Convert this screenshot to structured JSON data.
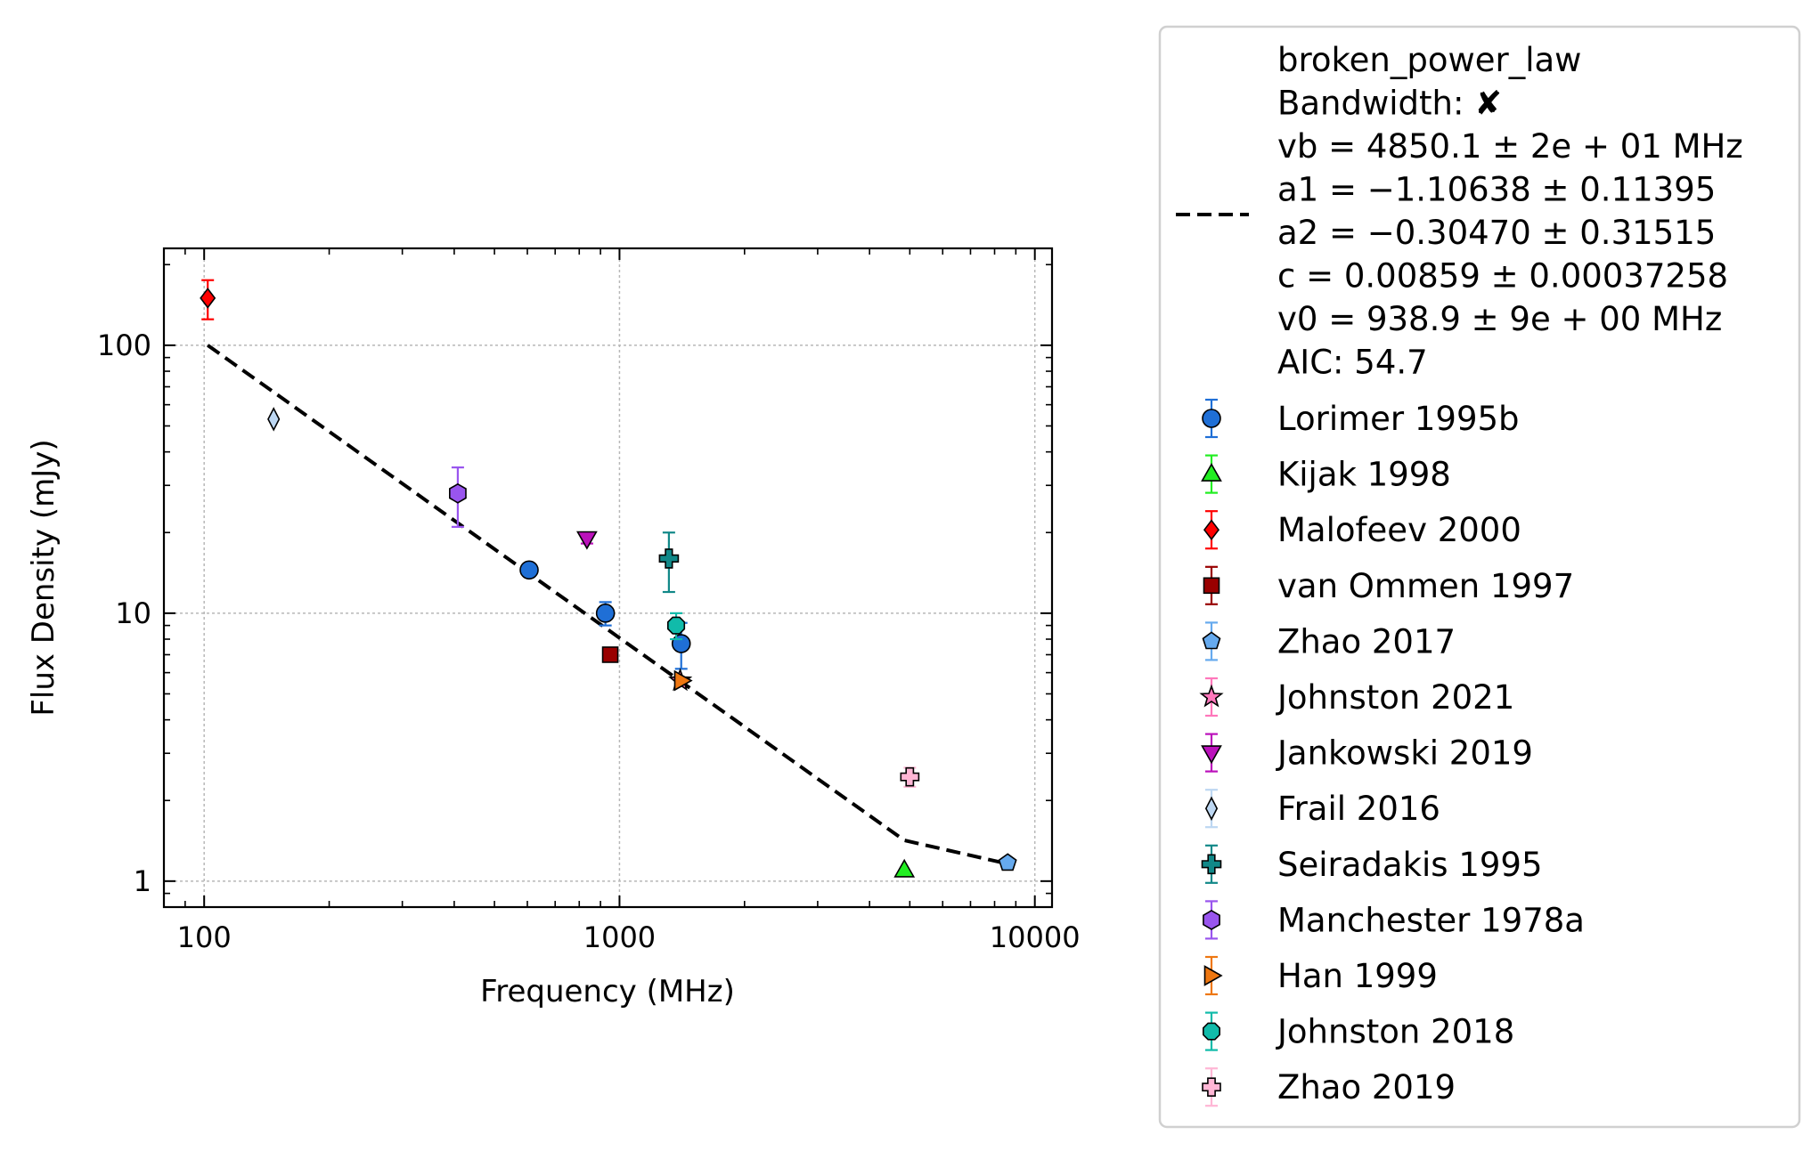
{
  "chart_data": {
    "type": "scatter",
    "xlabel": "Frequency (MHz)",
    "ylabel": "Flux Density (mJy)",
    "xscale": "log",
    "yscale": "log",
    "xlim": [
      80,
      11000
    ],
    "ylim": [
      0.8,
      230
    ],
    "x_ticks": [
      {
        "value": 100,
        "label": "100"
      },
      {
        "value": 1000,
        "label": "1000"
      },
      {
        "value": 10000,
        "label": "10000"
      }
    ],
    "y_ticks": [
      {
        "value": 1,
        "label": "1"
      },
      {
        "value": 10,
        "label": "10"
      },
      {
        "value": 100,
        "label": "100"
      }
    ],
    "grid": true,
    "legend_position": "outside-right",
    "fit": {
      "model": "broken_power_law",
      "style": "dashed",
      "color": "#000000",
      "legend_lines": [
        "broken_power_law",
        "Bandwidth: ✘",
        "vb = 4850.1 ± 2e + 01 MHz",
        "a1 = −1.10638 ± 0.11395",
        "a2 = −0.30470 ± 0.31515",
        "c = 0.00859 ± 0.00037258",
        "v0 = 938.9 ± 9e + 00 MHz",
        "AIC: 54.7"
      ],
      "x": [
        102,
        4850,
        8400
      ],
      "y": [
        100,
        1.42,
        1.17
      ]
    },
    "series": [
      {
        "name": "Lorimer 1995b",
        "marker": "circle",
        "color": "#1f6fd6",
        "points": [
          {
            "x": 606,
            "y": 14.5,
            "err": 0.8
          },
          {
            "x": 925,
            "y": 10.0,
            "err": 1.0
          },
          {
            "x": 1408,
            "y": 7.7,
            "err": 1.5
          }
        ]
      },
      {
        "name": "Kijak 1998",
        "marker": "triangle-up",
        "color": "#22ee22",
        "points": [
          {
            "x": 4850,
            "y": 1.1,
            "err": 0
          }
        ]
      },
      {
        "name": "Malofeev 2000",
        "marker": "diamond",
        "color": "#ff0000",
        "points": [
          {
            "x": 102,
            "y": 150,
            "err": 25
          }
        ]
      },
      {
        "name": "van Ommen 1997",
        "marker": "square",
        "color": "#990000",
        "points": [
          {
            "x": 950,
            "y": 7.0,
            "err": 0
          }
        ]
      },
      {
        "name": "Zhao 2017",
        "marker": "pentagon",
        "color": "#66aaee",
        "points": [
          {
            "x": 8600,
            "y": 1.17,
            "err": 0
          }
        ]
      },
      {
        "name": "Johnston 2021",
        "marker": "star",
        "color": "#ff77bb",
        "points": [
          {
            "x": 1400,
            "y": 5.6,
            "err": 0
          }
        ]
      },
      {
        "name": "Jankowski 2019",
        "marker": "triangle-down",
        "color": "#bb11bb",
        "points": [
          {
            "x": 835,
            "y": 19.0,
            "err": 0.8
          }
        ]
      },
      {
        "name": "Frail 2016",
        "marker": "thin-diamond",
        "color": "#bdd7f2",
        "points": [
          {
            "x": 147,
            "y": 53,
            "err": 0
          }
        ]
      },
      {
        "name": "Seiradakis 1995",
        "marker": "plus",
        "color": "#118888",
        "points": [
          {
            "x": 1315,
            "y": 16.0,
            "err": 4.0
          }
        ]
      },
      {
        "name": "Manchester 1978a",
        "marker": "hexagon",
        "color": "#9955ee",
        "points": [
          {
            "x": 408,
            "y": 28,
            "err": 7
          }
        ]
      },
      {
        "name": "Han 1999",
        "marker": "triangle-right",
        "color": "#ee7711",
        "points": [
          {
            "x": 1410,
            "y": 5.6,
            "err": 0
          }
        ]
      },
      {
        "name": "Johnston 2018",
        "marker": "octagon",
        "color": "#11bbaa",
        "points": [
          {
            "x": 1369,
            "y": 9.0,
            "err": 1.0
          }
        ]
      },
      {
        "name": "Zhao 2019",
        "marker": "x-filled",
        "color": "#ffb6d5",
        "points": [
          {
            "x": 5000,
            "y": 2.45,
            "err": 0.2
          }
        ]
      }
    ]
  }
}
